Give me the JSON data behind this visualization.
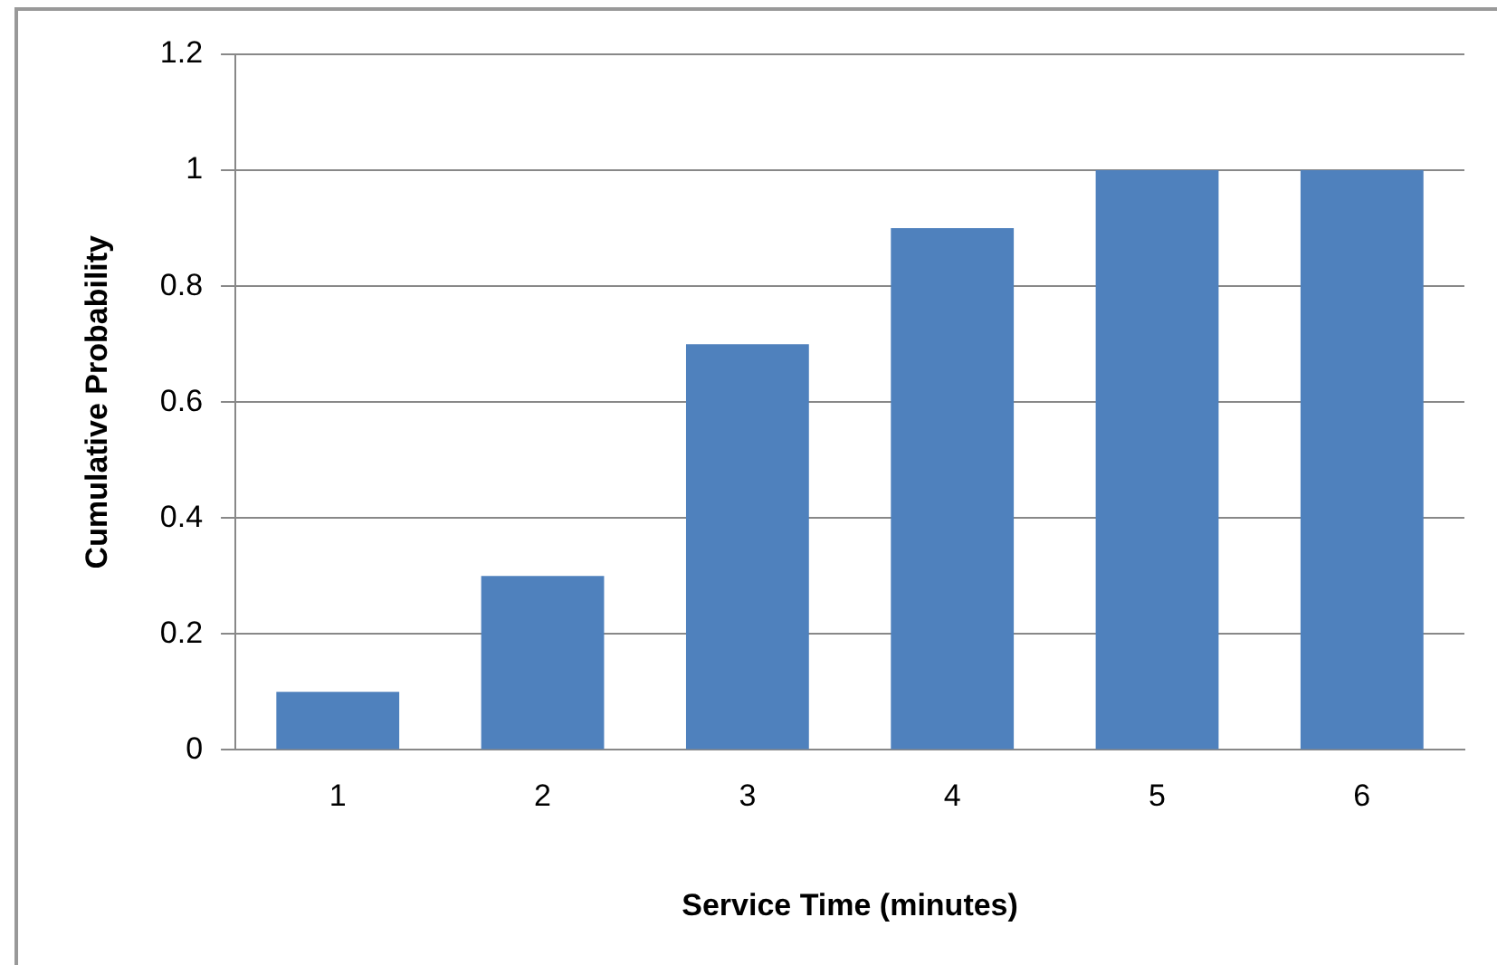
{
  "chart_data": {
    "type": "bar",
    "xlabel": "Service Time (minutes)",
    "ylabel": "Cumulative Probability",
    "categories": [
      "1",
      "2",
      "3",
      "4",
      "5",
      "6"
    ],
    "values": [
      0.1,
      0.3,
      0.7,
      0.9,
      1,
      1
    ],
    "color": "#4f81bd",
    "ylim": [
      0,
      1.2
    ],
    "yticks": [
      0,
      0.2,
      0.4,
      0.6,
      0.8,
      1,
      1.2
    ],
    "grid": "y",
    "legend": false
  }
}
